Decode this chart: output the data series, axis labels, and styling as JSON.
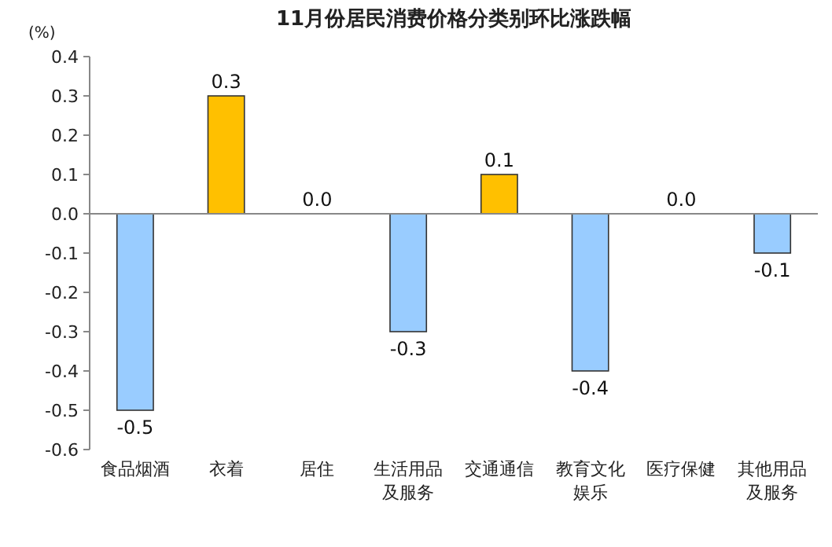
{
  "chart_data": {
    "type": "bar",
    "title": "11月份居民消费价格分类别环比涨跌幅",
    "ylabel": "(%)",
    "categories": [
      "食品烟酒",
      "衣着",
      "居住",
      "生活用品及服务",
      "交通通信",
      "教育文化娱乐",
      "医疗保健",
      "其他用品及服务"
    ],
    "values": [
      -0.5,
      0.3,
      0.0,
      -0.3,
      0.1,
      -0.4,
      0.0,
      -0.1
    ],
    "colors": [
      "#99ccff",
      "#ffc000",
      null,
      "#99ccff",
      "#ffc000",
      "#99ccff",
      null,
      "#99ccff"
    ],
    "value_labels": [
      "-0.5",
      "0.3",
      "0.0",
      "-0.3",
      "0.1",
      "-0.4",
      "0.0",
      "-0.1"
    ],
    "ylim": [
      -0.6,
      0.4
    ],
    "yticks": [
      -0.6,
      -0.5,
      -0.4,
      -0.3,
      -0.2,
      -0.1,
      {
        "value": 0,
        "label": "0.0"
      },
      0.1,
      0.2,
      0.3,
      0.4
    ],
    "data_labels": false
  }
}
